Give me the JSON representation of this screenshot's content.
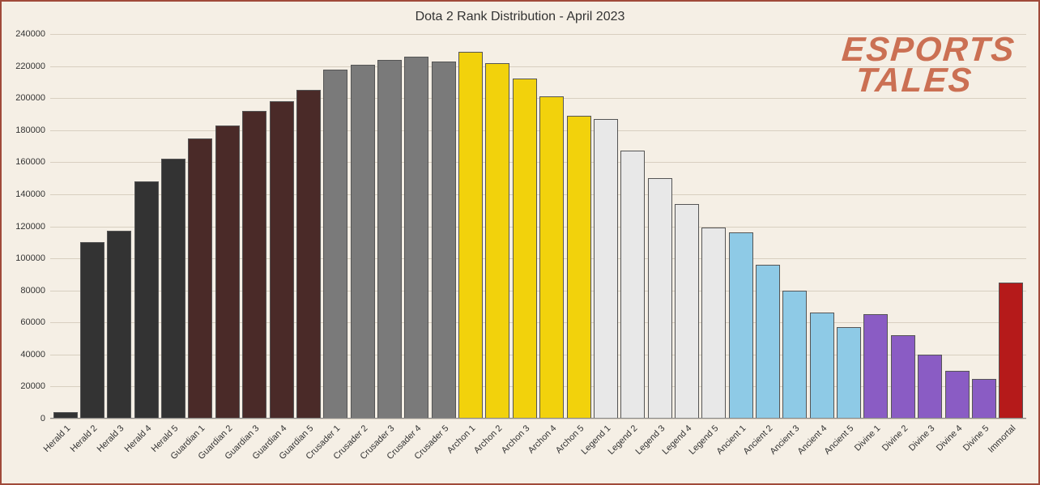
{
  "chart": {
    "type": "bar",
    "title": "Dota 2 Rank Distribution - April 2023",
    "title_fontsize": 16,
    "background_color": "#f5efe5",
    "border_color": "#a04a3a",
    "grid_color": "#d8cfc0",
    "text_color": "#333333",
    "label_fontsize": 11,
    "ylim": [
      0,
      240000
    ],
    "ytick_step": 20000,
    "yticks": [
      0,
      20000,
      40000,
      60000,
      80000,
      100000,
      120000,
      140000,
      160000,
      180000,
      200000,
      220000,
      240000
    ],
    "bar_width": 0.9,
    "bar_border_color": "#555555",
    "aspect": "1284x599",
    "categories": [
      "Herald 1",
      "Herald 2",
      "Herald 3",
      "Herald 4",
      "Herald 5",
      "Guardian 1",
      "Guardian 2",
      "Guardian 3",
      "Guardian 4",
      "Guardian 5",
      "Crusader 1",
      "Crusader 2",
      "Crusader 3",
      "Crusader 4",
      "Crusader 5",
      "Archon 1",
      "Archon 2",
      "Archon 3",
      "Archon 4",
      "Archon 5",
      "Legend 1",
      "Legend 2",
      "Legend 3",
      "Legend 4",
      "Legend 5",
      "Ancient 1",
      "Ancient 2",
      "Ancient 3",
      "Ancient 4",
      "Ancient 5",
      "Divine 1",
      "Divine 2",
      "Divine 3",
      "Divine 4",
      "Divine 5",
      "Immortal"
    ],
    "values": [
      4000,
      110000,
      117000,
      148000,
      162000,
      175000,
      183000,
      192000,
      198000,
      205000,
      218000,
      221000,
      224000,
      226000,
      223000,
      229000,
      222000,
      212000,
      201000,
      189000,
      187000,
      167000,
      150000,
      134000,
      119000,
      116000,
      96000,
      80000,
      66000,
      57000,
      65000,
      52000,
      40000,
      30000,
      25000,
      85000
    ],
    "bar_colors": [
      "#333333",
      "#333333",
      "#333333",
      "#333333",
      "#333333",
      "#4a2a28",
      "#4a2a28",
      "#4a2a28",
      "#4a2a28",
      "#4a2a28",
      "#7a7a7a",
      "#7a7a7a",
      "#7a7a7a",
      "#7a7a7a",
      "#7a7a7a",
      "#f2d20c",
      "#f2d20c",
      "#f2d20c",
      "#f2d20c",
      "#f2d20c",
      "#e8e8e8",
      "#e8e8e8",
      "#e8e8e8",
      "#e8e8e8",
      "#e8e8e8",
      "#8ecae6",
      "#8ecae6",
      "#8ecae6",
      "#8ecae6",
      "#8ecae6",
      "#8a5cc4",
      "#8a5cc4",
      "#8a5cc4",
      "#8a5cc4",
      "#8a5cc4",
      "#b51a1a"
    ],
    "watermark": {
      "line1": "ESPORTS",
      "line2": "TALES",
      "color": "#c45a3a",
      "fontsize": 42
    }
  }
}
